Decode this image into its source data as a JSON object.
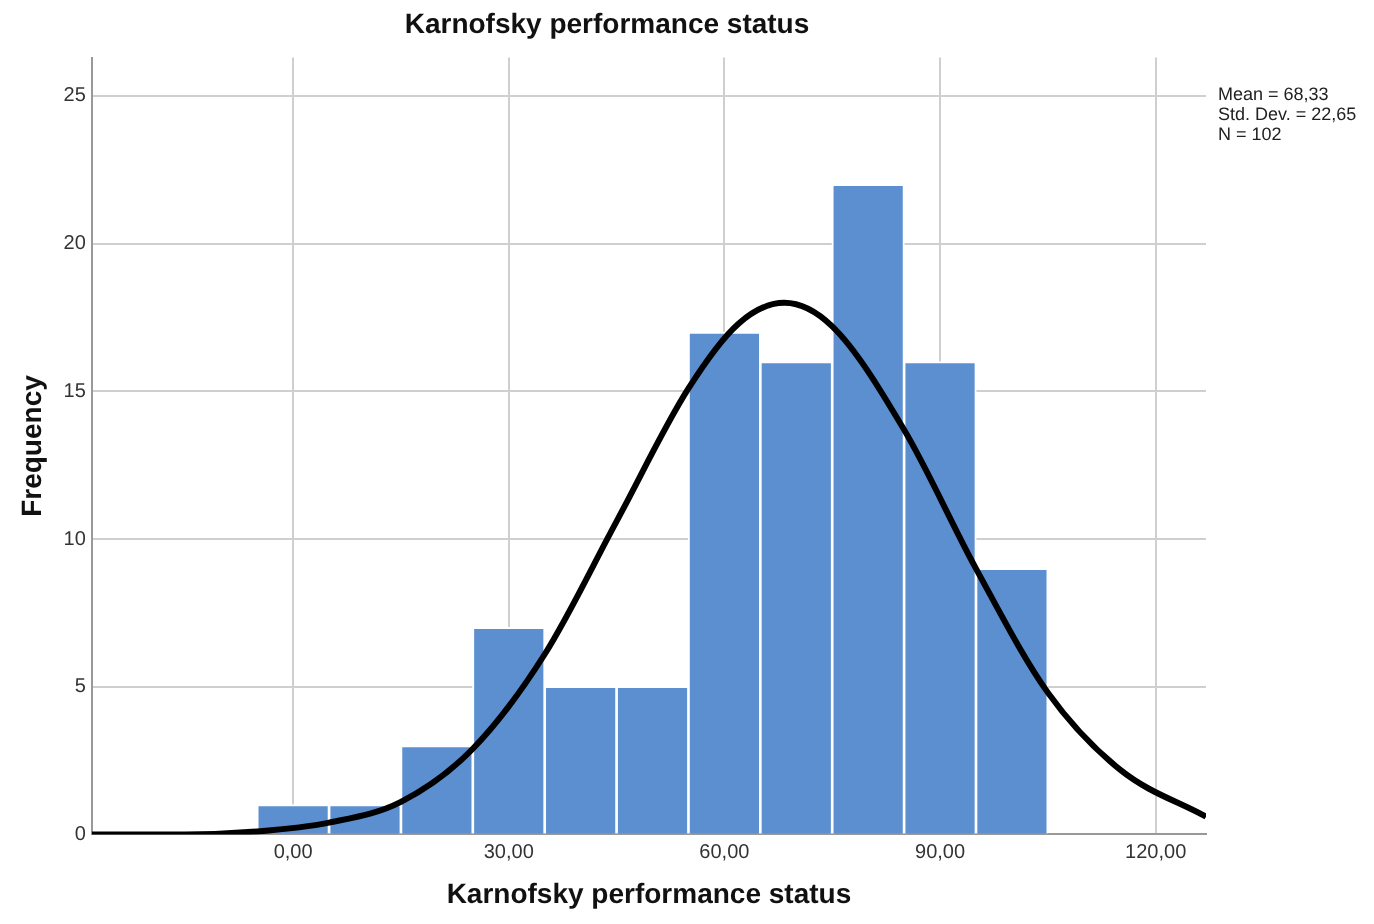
{
  "chart_data": {
    "type": "histogram",
    "title": "Karnofsky performance status",
    "xlabel": "Karnofsky performance status",
    "ylabel": "Frequency",
    "bins": [
      -5,
      5,
      15,
      25,
      35,
      45,
      55,
      65,
      75,
      85,
      95,
      105
    ],
    "values": [
      1,
      1,
      3,
      7,
      5,
      5,
      17,
      16,
      22,
      16,
      9
    ],
    "color": "#5b8fcf",
    "series": [
      {
        "type": "line",
        "color": "#000000",
        "x": [
          -28,
          -15,
          -5,
          5,
          15,
          25,
          35,
          45,
          55,
          62,
          68.33,
          75,
          85,
          95,
          105,
          115,
          127
        ],
        "values": [
          0,
          0,
          0.1,
          0.4,
          1.1,
          2.9,
          6.1,
          10.6,
          15.1,
          17.3,
          18,
          17.2,
          13.7,
          9,
          4.8,
          2.2,
          0.6
        ]
      }
    ],
    "xlim": [
      -28,
      127
    ],
    "ylim": [
      0,
      26.3
    ],
    "xticks": [
      {
        "value": 0,
        "label": "0,00"
      },
      {
        "value": 30,
        "label": "30,00"
      },
      {
        "value": 60,
        "label": "60,00"
      },
      {
        "value": 90,
        "label": "90,00"
      },
      {
        "value": 120,
        "label": "120,00"
      }
    ],
    "yticks": [
      0,
      5,
      10,
      15,
      20,
      25
    ],
    "grid": true,
    "annotations": [
      "Mean = 68,33",
      "Std. Dev. = 22,65",
      "N = 102"
    ]
  }
}
